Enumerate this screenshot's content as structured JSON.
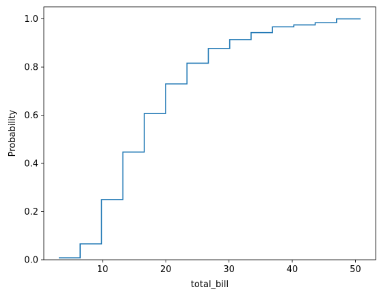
{
  "chart_data": {
    "type": "line",
    "title": "",
    "xlabel": "total_bill",
    "ylabel": "Probability",
    "xlim": [
      0.7,
      53.2
    ],
    "ylim": [
      0,
      1.05
    ],
    "xticks": [
      10,
      20,
      30,
      40,
      50
    ],
    "xtick_labels": [
      "10",
      "20",
      "30",
      "40",
      "50"
    ],
    "yticks": [
      0,
      0.2,
      0.4,
      0.6,
      0.8,
      1.0
    ],
    "ytick_labels": [
      "0.0",
      "0.2",
      "0.4",
      "0.6",
      "0.8",
      "1.0"
    ],
    "grid": false,
    "series": [
      {
        "color": "#1f77b4",
        "drawstyle": "steps-post",
        "x": [
          3.07,
          6.45,
          9.83,
          13.21,
          16.59,
          19.97,
          23.35,
          26.73,
          30.11,
          33.49,
          36.87,
          40.25,
          43.63,
          47.01,
          50.81
        ],
        "y": [
          0.008,
          0.066,
          0.25,
          0.447,
          0.607,
          0.73,
          0.816,
          0.877,
          0.914,
          0.943,
          0.967,
          0.975,
          0.984,
          1.0,
          1.0
        ]
      }
    ]
  }
}
